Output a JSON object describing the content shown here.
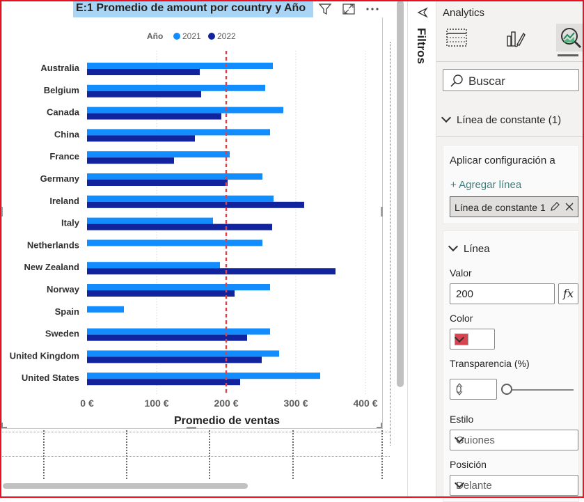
{
  "visual": {
    "title": "E:1 Promedio de amount por country y Año",
    "filter_icon": "filter-icon",
    "focus_icon": "focus-mode-icon",
    "more_icon": "more-options-icon"
  },
  "chart_data": {
    "type": "bar",
    "orientation": "horizontal",
    "legend_title": "Año",
    "legend_position": "top-center",
    "categories": [
      "Australia",
      "Belgium",
      "Canada",
      "China",
      "France",
      "Germany",
      "Ireland",
      "Italy",
      "Netherlands",
      "New Zealand",
      "Norway",
      "Spain",
      "Sweden",
      "United Kingdom",
      "United States"
    ],
    "series": [
      {
        "name": "2021",
        "color": "#118dff",
        "values": [
          267,
          256,
          282,
          263,
          205,
          252,
          268,
          181,
          252,
          191,
          263,
          53,
          263,
          276,
          335
        ]
      },
      {
        "name": "2022",
        "color": "#12239e",
        "values": [
          162,
          164,
          193,
          155,
          125,
          202,
          312,
          266,
          null,
          357,
          212,
          null,
          230,
          251,
          220
        ]
      }
    ],
    "xlabel": "Promedio de ventas",
    "xticks": [
      "0 €",
      "100 €",
      "200 €",
      "300 €",
      "400 €"
    ],
    "xlim": [
      0,
      420
    ],
    "reference_line": {
      "value": 200,
      "color": "#d64550",
      "style": "dashed"
    },
    "grid": "vertical-dotted"
  },
  "filters_pane": {
    "label": "Filtros",
    "collapse_icon": "collapse-icon"
  },
  "analytics": {
    "title": "Analytics",
    "tabs": [
      {
        "name": "fields-tab",
        "icon": "table-fields-icon"
      },
      {
        "name": "format-tab",
        "icon": "paintbrush-icon"
      },
      {
        "name": "analytics-tab",
        "icon": "magnifier-chart-icon"
      }
    ],
    "search_placeholder": "Buscar",
    "section_title": "Línea de constante (1)",
    "apply_to_label": "Aplicar configuración a",
    "add_line_label": "+ Agregar línea",
    "line_chip_label": "Línea de constante 1",
    "line_section_title": "Línea",
    "value_label": "Valor",
    "value": "200",
    "fx_label": "fx",
    "color_label": "Color",
    "color_value": "#d64550",
    "transparency_label": "Transparencia (%)",
    "transparency_value": "0",
    "style_label": "Estilo",
    "style_value": "Guiones",
    "position_label": "Posición",
    "position_value": "Delante"
  }
}
